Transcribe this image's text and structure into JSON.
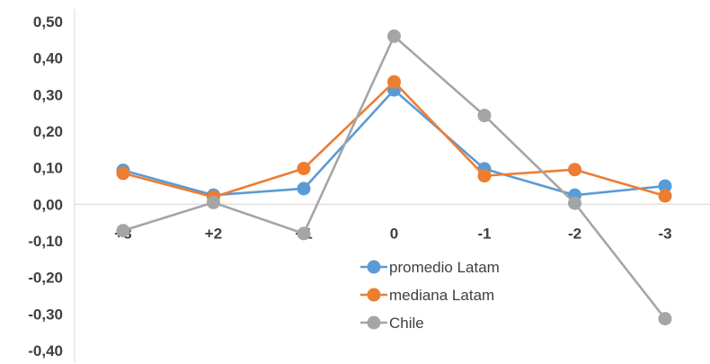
{
  "chart_data": {
    "type": "line",
    "categories": [
      "+3",
      "+2",
      "+1",
      "0",
      "-1",
      "-2",
      "-3"
    ],
    "y_tick_labels": [
      "0,50",
      "0,40",
      "0,30",
      "0,20",
      "0,10",
      "0,00",
      "-0,10",
      "-0,20",
      "-0,30",
      "-0,40"
    ],
    "ylim": [
      -0.4,
      0.5
    ],
    "grid": false,
    "legend_position": "bottom-center",
    "series": [
      {
        "name": "promedio Latam",
        "color": "#5B9BD5",
        "values": [
          0.093,
          0.025,
          0.043,
          0.313,
          0.097,
          0.025,
          0.05
        ]
      },
      {
        "name": "mediana Latam",
        "color": "#ED7D31",
        "values": [
          0.085,
          0.02,
          0.098,
          0.335,
          0.078,
          0.095,
          0.023
        ]
      },
      {
        "name": "Chile",
        "color": "#A5A5A5",
        "values": [
          -0.072,
          0.005,
          -0.08,
          0.46,
          0.243,
          0.003,
          -0.313
        ]
      }
    ]
  }
}
